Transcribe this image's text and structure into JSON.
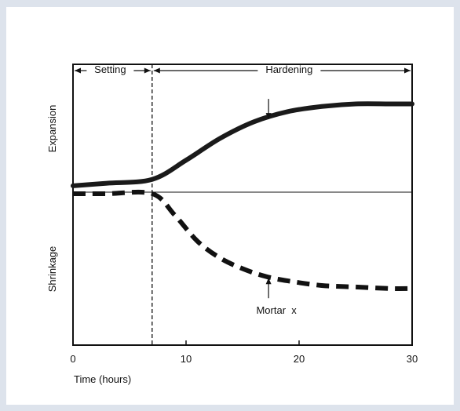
{
  "chart_data": {
    "type": "line",
    "title": "",
    "xlabel": "Time (hours)",
    "ylabel_top": "Expansion",
    "ylabel_bottom": "Shrinkage",
    "x_ticks": [
      0,
      10,
      20,
      30
    ],
    "xlim": [
      0,
      30
    ],
    "ylim": [
      -1,
      1
    ],
    "grid": false,
    "phases": [
      {
        "label": "Setting",
        "x_start": 0,
        "x_end": 7
      },
      {
        "label": "Hardening",
        "x_start": 7,
        "x_end": 30
      }
    ],
    "divider_x": 7,
    "baseline_y": 0,
    "series": [
      {
        "style": "solid-thick",
        "x": [
          0,
          3,
          7,
          10,
          13,
          16,
          19,
          22,
          25,
          28,
          30
        ],
        "y": [
          0.05,
          0.07,
          0.1,
          0.25,
          0.42,
          0.55,
          0.63,
          0.67,
          0.69,
          0.69,
          0.69
        ]
      },
      {
        "name": "Mortar x",
        "style": "dashed-thick",
        "x": [
          0,
          3,
          7,
          9,
          11,
          13,
          15,
          17,
          19,
          22,
          25,
          28,
          30
        ],
        "y": [
          -0.01,
          -0.01,
          -0.01,
          -0.15,
          -0.32,
          -0.43,
          -0.5,
          -0.55,
          -0.58,
          -0.61,
          -0.62,
          -0.63,
          -0.63
        ]
      }
    ],
    "annotations": [
      {
        "type": "arrow-down",
        "x": 17.3,
        "y": 0.57
      },
      {
        "type": "arrow-up",
        "x": 17.3,
        "y": -0.56,
        "label": "Mortar  x"
      }
    ]
  }
}
